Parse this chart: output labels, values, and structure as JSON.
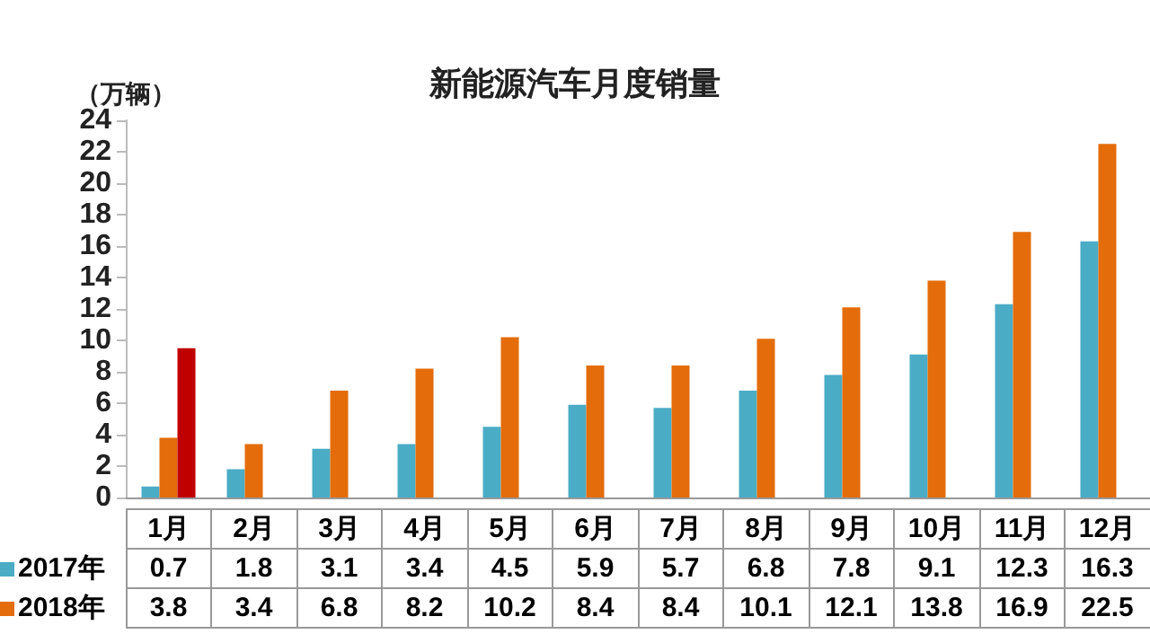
{
  "chart_data": {
    "type": "bar",
    "title": "新能源汽车月度销量",
    "ylabel": "（万辆）",
    "categories": [
      "1月",
      "2月",
      "3月",
      "4月",
      "5月",
      "6月",
      "7月",
      "8月",
      "9月",
      "10月",
      "11月",
      "12月"
    ],
    "series": [
      {
        "name": "2017年",
        "color": "#4bacc6",
        "values": [
          0.7,
          1.8,
          3.1,
          3.4,
          4.5,
          5.9,
          5.7,
          6.8,
          7.8,
          9.1,
          12.3,
          16.3
        ],
        "value_labels": [
          "0.7",
          "1.8",
          "3.1",
          "3.4",
          "4.5",
          "5.9",
          "5.7",
          "6.8",
          "7.8",
          "9.1",
          "12.3",
          "16.3"
        ]
      },
      {
        "name": "2018年",
        "color": "#e46c0a",
        "values": [
          3.8,
          3.4,
          6.8,
          8.2,
          10.2,
          8.4,
          8.4,
          10.1,
          12.1,
          13.8,
          16.9,
          22.5
        ],
        "value_labels": [
          "3.8",
          "3.4",
          "6.8",
          "8.2",
          "10.2",
          "8.4",
          "8.4",
          "10.1",
          "12.1",
          "13.8",
          "16.9",
          "22.5"
        ]
      },
      {
        "color": "#c00000",
        "values": [
          9.5,
          null,
          null,
          null,
          null,
          null,
          null,
          null,
          null,
          null,
          null,
          null
        ]
      }
    ],
    "ylim": [
      0,
      24
    ],
    "yticks": [
      0,
      2,
      4,
      6,
      8,
      10,
      12,
      14,
      16,
      18,
      20,
      22,
      24
    ],
    "grid": false,
    "legend": "bottom left"
  }
}
